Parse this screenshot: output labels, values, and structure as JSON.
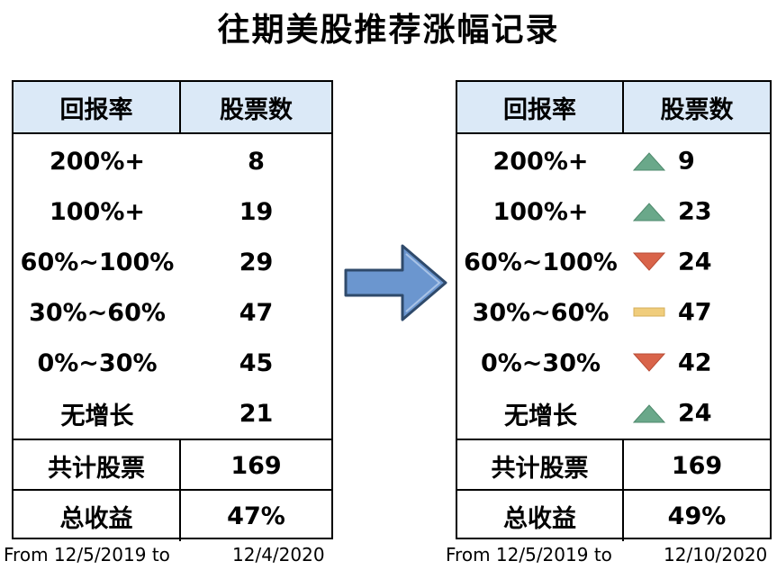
{
  "title": "往期美股推荐涨幅记录",
  "headers": {
    "col1": "回报率",
    "col2": "股票数"
  },
  "chart_data": [
    {
      "type": "table",
      "columns": [
        "回报率",
        "股票数"
      ],
      "rows": [
        {
          "category": "200%+",
          "value": 8
        },
        {
          "category": "100%+",
          "value": 19
        },
        {
          "category": "60%~100%",
          "value": 29
        },
        {
          "category": "30%~60%",
          "value": 47
        },
        {
          "category": "0%~30%",
          "value": 45
        },
        {
          "category": "无增长",
          "value": 21
        }
      ],
      "total_label": "共计股票",
      "total": 169,
      "return_label": "总收益",
      "return": "47%",
      "date_from": "From 12/5/2019 to",
      "date_to": "12/4/2020"
    },
    {
      "type": "table",
      "columns": [
        "回报率",
        "股票数"
      ],
      "rows": [
        {
          "category": "200%+",
          "value": 9,
          "trend": "up"
        },
        {
          "category": "100%+",
          "value": 23,
          "trend": "up"
        },
        {
          "category": "60%~100%",
          "value": 24,
          "trend": "down"
        },
        {
          "category": "30%~60%",
          "value": 47,
          "trend": "flat"
        },
        {
          "category": "0%~30%",
          "value": 42,
          "trend": "down"
        },
        {
          "category": "无增长",
          "value": 24,
          "trend": "up"
        }
      ],
      "total_label": "共计股票",
      "total": 169,
      "return_label": "总收益",
      "return": "49%",
      "date_from": "From 12/5/2019 to",
      "date_to": "12/10/2020"
    }
  ],
  "colors": {
    "header_bg": "#dbe9f7",
    "up": "#6aa88a",
    "down": "#d9644a",
    "flat": "#f0cd7c",
    "arrow_fill": "#6b96cf",
    "arrow_stroke": "#2f4a6b"
  },
  "icons": {
    "up": "triangle-up-icon",
    "down": "triangle-down-icon",
    "flat": "flat-bar-icon",
    "arrow": "right-arrow-icon"
  }
}
